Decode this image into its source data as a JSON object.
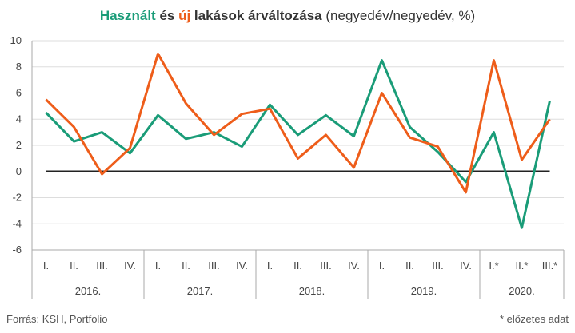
{
  "title": {
    "part_used": "Használt",
    "part_and": " és ",
    "part_new": "új",
    "part_rest": " lakások árváltozása",
    "part_unit": " (negyedév/negyedév, %)"
  },
  "footer": {
    "source": "Forrás: KSH, Portfolio",
    "note": "* előzetes adat"
  },
  "colors": {
    "used": "#1a9c78",
    "new": "#ee5d1a",
    "zero_line": "#222222",
    "grid": "#dddddd",
    "axis": "#aaaaaa"
  },
  "chart_data": {
    "type": "line",
    "title": "Használt és új lakások árváltozása (negyedév/negyedév, %)",
    "ylim": [
      -6,
      10
    ],
    "y_ticks": [
      "10",
      "8",
      "6",
      "4",
      "2",
      "0",
      "-2",
      "-4",
      "-6"
    ],
    "grid": true,
    "categories": [
      "I.",
      "II.",
      "III.",
      "IV.",
      "I.",
      "II.",
      "III.",
      "IV.",
      "I.",
      "II.",
      "III.",
      "IV.",
      "I.",
      "II.",
      "III.",
      "IV.",
      "I.*",
      "II.*",
      "III.*"
    ],
    "years": [
      {
        "label": "2016.",
        "quarters": 4
      },
      {
        "label": "2017.",
        "quarters": 4
      },
      {
        "label": "2018.",
        "quarters": 4
      },
      {
        "label": "2019.",
        "quarters": 4
      },
      {
        "label": "2020.",
        "quarters": 3
      }
    ],
    "series": [
      {
        "name": "Használt",
        "color": "#1a9c78",
        "values": [
          4.5,
          2.3,
          3.0,
          1.4,
          4.3,
          2.5,
          3.0,
          1.9,
          5.1,
          2.8,
          4.3,
          2.7,
          8.5,
          3.4,
          1.5,
          -0.8,
          3.0,
          -4.3,
          5.4
        ]
      },
      {
        "name": "Új",
        "color": "#ee5d1a",
        "values": [
          5.5,
          3.4,
          -0.2,
          1.8,
          9.0,
          5.2,
          2.8,
          4.4,
          4.8,
          1.0,
          2.8,
          0.3,
          6.0,
          2.6,
          1.9,
          -1.6,
          8.5,
          0.9,
          4.0
        ]
      }
    ]
  }
}
